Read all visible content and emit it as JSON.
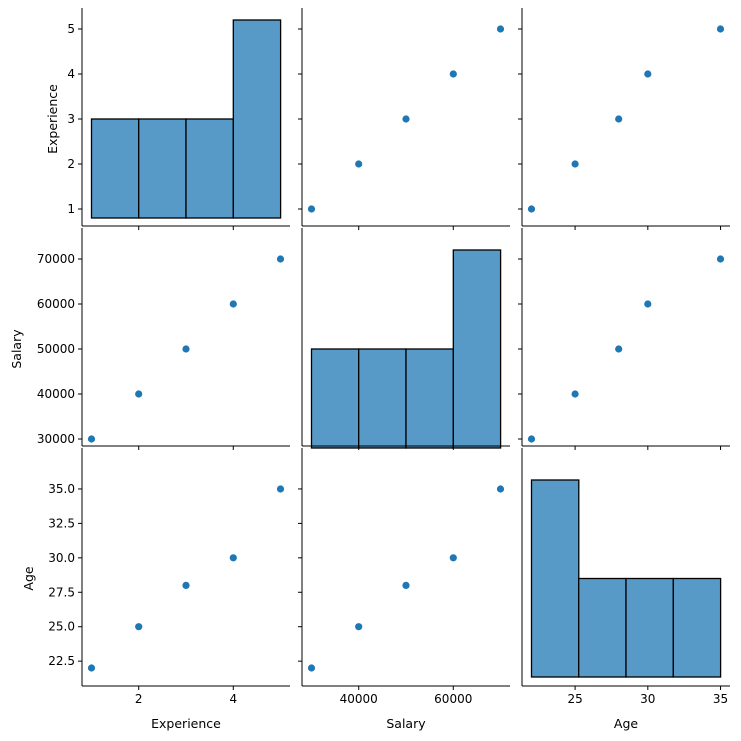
{
  "colors": {
    "point": "#1f77b4",
    "bar_fill": "#5799c7",
    "bar_edge": "#000000",
    "axis": "#000000"
  },
  "chart_data": {
    "type": "scatter",
    "kind": "pairplot",
    "grid": false,
    "variables": [
      "Experience",
      "Salary",
      "Age"
    ],
    "records": [
      {
        "Experience": 1,
        "Salary": 30000,
        "Age": 22
      },
      {
        "Experience": 2,
        "Salary": 40000,
        "Age": 25
      },
      {
        "Experience": 3,
        "Salary": 50000,
        "Age": 28
      },
      {
        "Experience": 4,
        "Salary": 60000,
        "Age": 30
      },
      {
        "Experience": 5,
        "Salary": 70000,
        "Age": 35
      }
    ],
    "axes": {
      "Experience": {
        "range": [
          0.8,
          5.2
        ],
        "ticks": [
          2,
          4
        ],
        "ticks_y": [
          1,
          2,
          3,
          4,
          5
        ],
        "labels_y": [
          "1",
          "2",
          "3",
          "4",
          "5"
        ]
      },
      "Salary": {
        "range": [
          28000,
          72000
        ],
        "ticks": [
          40000,
          60000
        ],
        "ticks_y": [
          30000,
          40000,
          50000,
          60000,
          70000
        ],
        "labels_y": [
          "30000",
          "40000",
          "50000",
          "60000",
          "70000"
        ]
      },
      "Age": {
        "range": [
          21.35,
          35.65
        ],
        "ticks": [
          25,
          30,
          35
        ],
        "ticks_y": [
          22.5,
          25.0,
          27.5,
          30.0,
          32.5,
          35.0
        ],
        "labels_y": [
          "22.5",
          "25.0",
          "27.5",
          "30.0",
          "32.5",
          "35.0"
        ]
      }
    },
    "histograms": {
      "Experience": {
        "bin_edges": [
          1,
          2,
          3,
          4,
          5
        ],
        "counts": [
          1,
          1,
          1,
          2
        ]
      },
      "Salary": {
        "bin_edges": [
          30000,
          40000,
          50000,
          60000,
          70000
        ],
        "counts": [
          1,
          1,
          1,
          2
        ]
      },
      "Age": {
        "bin_edges": [
          22,
          25.25,
          28.5,
          31.75,
          35
        ],
        "counts": [
          2,
          1,
          1,
          1
        ]
      }
    }
  }
}
